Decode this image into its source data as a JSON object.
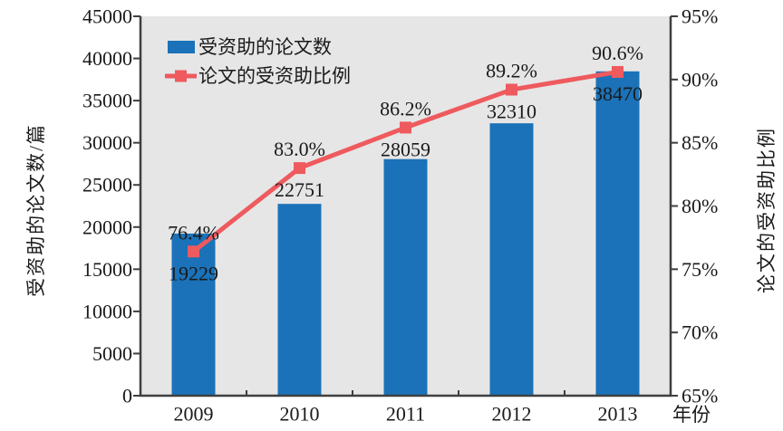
{
  "chart_data": {
    "type": "combo",
    "subtypes": [
      "bar",
      "line"
    ],
    "categories": [
      "2009",
      "2010",
      "2011",
      "2012",
      "2013"
    ],
    "series": [
      {
        "name": "受资助的论文数",
        "chart_type": "bar",
        "axis": "left",
        "color": "#1b72b8",
        "values": [
          19229,
          22751,
          28059,
          32310,
          38470
        ],
        "data_labels": [
          "19229",
          "22751",
          "28059",
          "32310",
          "38470"
        ]
      },
      {
        "name": "论文的受资助比例",
        "chart_type": "line",
        "axis": "right",
        "color": "#ee5a5e",
        "marker": "square",
        "values": [
          76.4,
          83.0,
          86.2,
          89.2,
          90.6
        ],
        "data_labels": [
          "76.4%",
          "83.0%",
          "86.2%",
          "89.2%",
          "90.6%"
        ]
      }
    ],
    "axes": {
      "left": {
        "title": "受资助的论文数/篇",
        "min": 0,
        "max": 45000,
        "step": 5000,
        "tick_labels": [
          "0",
          "5000",
          "10000",
          "15000",
          "20000",
          "25000",
          "30000",
          "35000",
          "40000",
          "45000"
        ]
      },
      "right": {
        "title": "论文的受资助比例",
        "min": 65,
        "max": 95,
        "step": 5,
        "tick_labels": [
          "65%",
          "70%",
          "75%",
          "80%",
          "85%",
          "90%",
          "95%"
        ]
      },
      "x": {
        "title": "年份",
        "tick_labels": [
          "2009",
          "2010",
          "2011",
          "2012",
          "2013"
        ]
      }
    },
    "legend": {
      "position": "top-left-inside",
      "items": [
        {
          "label": "受资助的论文数",
          "swatch": "bar",
          "color": "#1b72b8"
        },
        {
          "label": "论文的受资助比例",
          "swatch": "line-square",
          "color": "#ee5a5e"
        }
      ]
    },
    "style": {
      "plot_bg": "#e6e6e6",
      "page_bg": "#ffffff",
      "axis_color": "#3f3f3f",
      "text_color": "#1a1a1a",
      "grid": "off"
    }
  }
}
